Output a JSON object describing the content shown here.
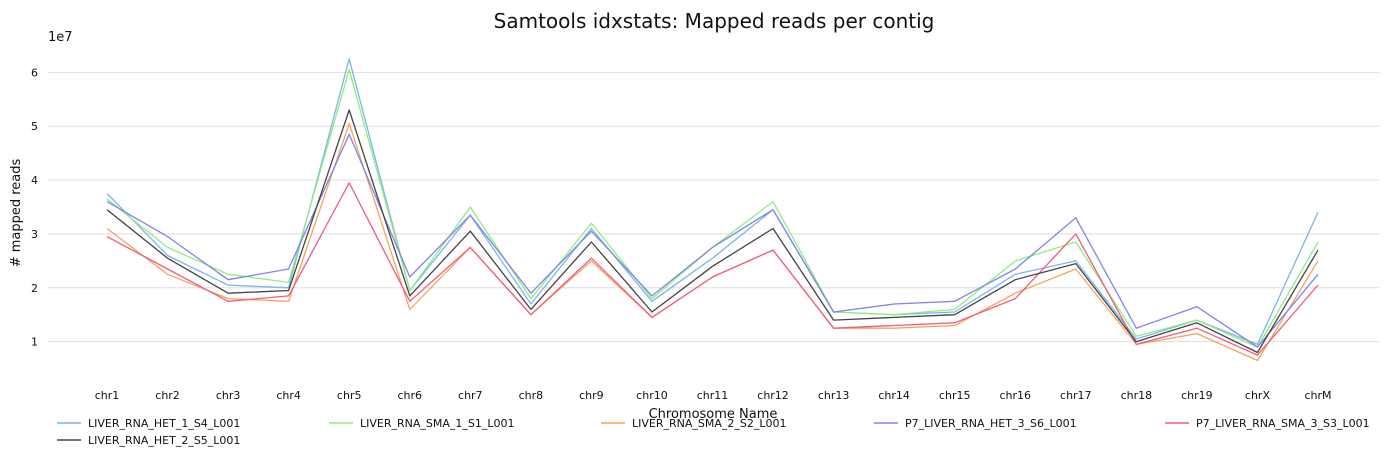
{
  "chart_data": {
    "type": "line",
    "title": "Samtools idxstats: Mapped reads per contig",
    "xlabel": "Chromosome Name",
    "ylabel": "# mapped reads",
    "y_offset_label": "1e7",
    "categories": [
      "chr1",
      "chr2",
      "chr3",
      "chr4",
      "chr5",
      "chr6",
      "chr7",
      "chr8",
      "chr9",
      "chr10",
      "chr11",
      "chr12",
      "chr13",
      "chr14",
      "chr15",
      "chr16",
      "chr17",
      "chr18",
      "chr19",
      "chrX",
      "chrM"
    ],
    "yticks": [
      "1",
      "2",
      "3",
      "4",
      "5",
      "6"
    ],
    "ylim": [
      0.4,
      6.6
    ],
    "grid": true,
    "legend_position": "bottom",
    "series": [
      {
        "name": "LIVER_RNA_HET_1_S4_L001",
        "color": "#7cb5ec",
        "values": [
          3.75,
          2.6,
          2.05,
          2.0,
          6.25,
          1.95,
          3.35,
          1.7,
          3.1,
          1.75,
          2.55,
          3.45,
          1.55,
          1.5,
          1.55,
          2.25,
          2.5,
          1.05,
          1.4,
          0.95,
          3.4
        ]
      },
      {
        "name": "LIVER_RNA_SMA_1_S1_L001",
        "color": "#90ed7d",
        "values": [
          3.65,
          2.75,
          2.25,
          2.1,
          6.05,
          1.95,
          3.5,
          1.8,
          3.2,
          1.8,
          2.75,
          3.6,
          1.55,
          1.5,
          1.6,
          2.5,
          2.85,
          1.1,
          1.4,
          0.9,
          2.85
        ]
      },
      {
        "name": "LIVER_RNA_SMA_2_S2_L001",
        "color": "#f7a35c",
        "values": [
          3.1,
          2.25,
          1.8,
          1.75,
          5.05,
          1.6,
          2.75,
          1.5,
          2.5,
          1.45,
          2.2,
          2.7,
          1.25,
          1.25,
          1.3,
          1.9,
          2.35,
          0.95,
          1.15,
          0.65,
          2.5
        ]
      },
      {
        "name": "P7_LIVER_RNA_HET_3_S6_L001",
        "color": "#8085e9",
        "values": [
          3.6,
          2.95,
          2.15,
          2.35,
          4.85,
          2.2,
          3.35,
          1.9,
          3.05,
          1.85,
          2.75,
          3.45,
          1.55,
          1.7,
          1.75,
          2.35,
          3.3,
          1.25,
          1.65,
          0.9,
          2.25
        ]
      },
      {
        "name": "P7_LIVER_RNA_SMA_3_S3_L001",
        "color": "#f15c80",
        "values": [
          2.95,
          2.35,
          1.75,
          1.85,
          3.95,
          1.75,
          2.75,
          1.5,
          2.55,
          1.45,
          2.2,
          2.7,
          1.25,
          1.3,
          1.35,
          1.8,
          3.0,
          0.95,
          1.25,
          0.75,
          2.05
        ]
      },
      {
        "name": "LIVER_RNA_HET_2_S5_L001",
        "color": "#434348",
        "values": [
          3.45,
          2.55,
          1.9,
          1.95,
          5.3,
          1.85,
          3.05,
          1.6,
          2.85,
          1.55,
          2.4,
          3.1,
          1.4,
          1.45,
          1.5,
          2.15,
          2.45,
          1.0,
          1.35,
          0.8,
          2.7
        ]
      }
    ]
  }
}
